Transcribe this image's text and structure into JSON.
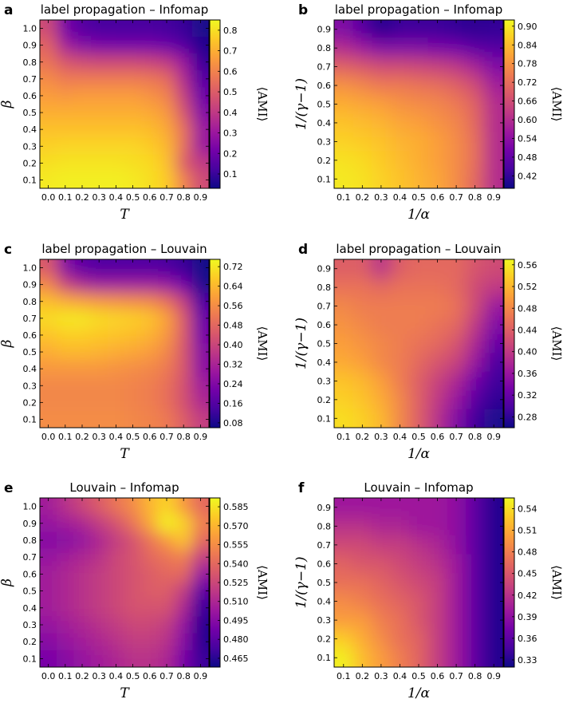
{
  "figure": {
    "colormap": [
      "#0d0887",
      "#46039f",
      "#7201a8",
      "#9c179e",
      "#bd3786",
      "#d8576b",
      "#ed7953",
      "#fb9f3a",
      "#fdca26",
      "#f0f921"
    ]
  },
  "chart_data": [
    {
      "type": "heatmap",
      "panel": "a",
      "title": "label propagation – Infomap",
      "xlabel": "T",
      "ylabel": "β",
      "colorbar_label": "⟨AMI⟩",
      "x": [
        0.0,
        0.1,
        0.2,
        0.3,
        0.4,
        0.5,
        0.6,
        0.7,
        0.8,
        0.9
      ],
      "y": [
        1.0,
        0.9,
        0.8,
        0.7,
        0.6,
        0.5,
        0.4,
        0.3,
        0.2,
        0.1
      ],
      "xticks": [
        "0.0",
        "0.1",
        "0.2",
        "0.3",
        "0.4",
        "0.5",
        "0.6",
        "0.7",
        "0.8",
        "0.9"
      ],
      "yticks": [
        "1.0",
        "0.9",
        "0.8",
        "0.7",
        "0.6",
        "0.5",
        "0.4",
        "0.3",
        "0.2",
        "0.1"
      ],
      "clim": [
        0.03,
        0.85
      ],
      "cbar_ticks": [
        "0.8",
        "0.7",
        "0.6",
        "0.5",
        "0.4",
        "0.3",
        "0.2",
        "0.1"
      ],
      "cbar_values": [
        0.8,
        0.7,
        0.6,
        0.5,
        0.4,
        0.3,
        0.2,
        0.1
      ],
      "values": [
        [
          0.45,
          0.22,
          0.15,
          0.13,
          0.13,
          0.13,
          0.13,
          0.12,
          0.1,
          0.05
        ],
        [
          0.52,
          0.32,
          0.25,
          0.23,
          0.22,
          0.22,
          0.22,
          0.2,
          0.15,
          0.06
        ],
        [
          0.56,
          0.48,
          0.45,
          0.44,
          0.44,
          0.44,
          0.43,
          0.4,
          0.3,
          0.1
        ],
        [
          0.62,
          0.58,
          0.58,
          0.58,
          0.58,
          0.58,
          0.57,
          0.54,
          0.36,
          0.15
        ],
        [
          0.66,
          0.65,
          0.66,
          0.66,
          0.66,
          0.66,
          0.64,
          0.6,
          0.42,
          0.2
        ],
        [
          0.7,
          0.7,
          0.7,
          0.7,
          0.7,
          0.7,
          0.69,
          0.65,
          0.48,
          0.25
        ],
        [
          0.74,
          0.74,
          0.74,
          0.74,
          0.74,
          0.74,
          0.73,
          0.69,
          0.55,
          0.3
        ],
        [
          0.77,
          0.78,
          0.78,
          0.78,
          0.78,
          0.78,
          0.76,
          0.72,
          0.55,
          0.3
        ],
        [
          0.8,
          0.81,
          0.81,
          0.81,
          0.81,
          0.8,
          0.79,
          0.74,
          0.5,
          0.4
        ],
        [
          0.82,
          0.83,
          0.83,
          0.83,
          0.83,
          0.82,
          0.8,
          0.76,
          0.6,
          0.45
        ]
      ]
    },
    {
      "type": "heatmap",
      "panel": "b",
      "title": "label propagation – Infomap",
      "xlabel": "1/α",
      "ylabel": "1/(γ−1)",
      "colorbar_label": "⟨AMI⟩",
      "x": [
        0.1,
        0.2,
        0.3,
        0.4,
        0.5,
        0.6,
        0.7,
        0.8,
        0.9
      ],
      "y": [
        0.9,
        0.8,
        0.7,
        0.6,
        0.5,
        0.4,
        0.3,
        0.2,
        0.1
      ],
      "xticks": [
        "0.1",
        "0.2",
        "0.3",
        "0.4",
        "0.5",
        "0.6",
        "0.7",
        "0.8",
        "0.9"
      ],
      "yticks": [
        "0.9",
        "0.8",
        "0.7",
        "0.6",
        "0.5",
        "0.4",
        "0.3",
        "0.2",
        "0.1"
      ],
      "clim": [
        0.38,
        0.92
      ],
      "cbar_ticks": [
        "0.90",
        "0.84",
        "0.78",
        "0.72",
        "0.66",
        "0.60",
        "0.54",
        "0.48",
        "0.42"
      ],
      "cbar_values": [
        0.9,
        0.84,
        0.78,
        0.72,
        0.66,
        0.6,
        0.54,
        0.48,
        0.42
      ],
      "values": [
        [
          0.52,
          0.46,
          0.4,
          0.43,
          0.43,
          0.43,
          0.42,
          0.41,
          0.42
        ],
        [
          0.6,
          0.56,
          0.52,
          0.52,
          0.52,
          0.51,
          0.5,
          0.47,
          0.46
        ],
        [
          0.7,
          0.68,
          0.66,
          0.66,
          0.65,
          0.64,
          0.62,
          0.58,
          0.52
        ],
        [
          0.78,
          0.76,
          0.74,
          0.74,
          0.73,
          0.72,
          0.7,
          0.66,
          0.57
        ],
        [
          0.82,
          0.81,
          0.8,
          0.78,
          0.77,
          0.76,
          0.74,
          0.7,
          0.6
        ],
        [
          0.85,
          0.84,
          0.83,
          0.81,
          0.8,
          0.78,
          0.76,
          0.71,
          0.6
        ],
        [
          0.87,
          0.86,
          0.85,
          0.83,
          0.82,
          0.8,
          0.77,
          0.72,
          0.6
        ],
        [
          0.89,
          0.88,
          0.86,
          0.84,
          0.82,
          0.8,
          0.77,
          0.72,
          0.6
        ],
        [
          0.9,
          0.89,
          0.87,
          0.85,
          0.83,
          0.81,
          0.77,
          0.71,
          0.6
        ]
      ]
    },
    {
      "type": "heatmap",
      "panel": "c",
      "title": "label propagation – Louvain",
      "xlabel": "T",
      "ylabel": "β",
      "colorbar_label": "⟨AMI⟩",
      "x": [
        0.0,
        0.1,
        0.2,
        0.3,
        0.4,
        0.5,
        0.6,
        0.7,
        0.8,
        0.9
      ],
      "y": [
        1.0,
        0.9,
        0.8,
        0.7,
        0.6,
        0.5,
        0.4,
        0.3,
        0.2,
        0.1
      ],
      "xticks": [
        "0.0",
        "0.1",
        "0.2",
        "0.3",
        "0.4",
        "0.5",
        "0.6",
        "0.7",
        "0.8",
        "0.9"
      ],
      "yticks": [
        "1.0",
        "0.9",
        "0.8",
        "0.7",
        "0.6",
        "0.5",
        "0.4",
        "0.3",
        "0.2",
        "0.1"
      ],
      "clim": [
        0.06,
        0.75
      ],
      "cbar_ticks": [
        "0.72",
        "0.64",
        "0.56",
        "0.48",
        "0.40",
        "0.32",
        "0.24",
        "0.16",
        "0.08"
      ],
      "cbar_values": [
        0.72,
        0.64,
        0.56,
        0.48,
        0.4,
        0.32,
        0.24,
        0.16,
        0.08
      ],
      "values": [
        [
          0.45,
          0.25,
          0.18,
          0.16,
          0.16,
          0.16,
          0.16,
          0.15,
          0.12,
          0.07
        ],
        [
          0.55,
          0.4,
          0.33,
          0.3,
          0.3,
          0.3,
          0.3,
          0.28,
          0.22,
          0.08
        ],
        [
          0.65,
          0.62,
          0.6,
          0.58,
          0.57,
          0.56,
          0.55,
          0.5,
          0.38,
          0.15
        ],
        [
          0.7,
          0.72,
          0.72,
          0.7,
          0.69,
          0.68,
          0.66,
          0.6,
          0.45,
          0.2
        ],
        [
          0.66,
          0.68,
          0.68,
          0.67,
          0.66,
          0.65,
          0.63,
          0.58,
          0.45,
          0.22
        ],
        [
          0.62,
          0.64,
          0.64,
          0.63,
          0.62,
          0.61,
          0.59,
          0.55,
          0.44,
          0.25
        ],
        [
          0.58,
          0.58,
          0.58,
          0.58,
          0.57,
          0.56,
          0.55,
          0.52,
          0.44,
          0.26
        ],
        [
          0.55,
          0.55,
          0.55,
          0.55,
          0.55,
          0.54,
          0.53,
          0.5,
          0.43,
          0.3
        ],
        [
          0.55,
          0.55,
          0.55,
          0.55,
          0.55,
          0.54,
          0.53,
          0.5,
          0.43,
          0.33
        ],
        [
          0.56,
          0.56,
          0.56,
          0.56,
          0.56,
          0.55,
          0.54,
          0.52,
          0.46,
          0.38
        ]
      ]
    },
    {
      "type": "heatmap",
      "panel": "d",
      "title": "label propagation – Louvain",
      "xlabel": "1/α",
      "ylabel": "1/(γ−1)",
      "colorbar_label": "⟨AMI⟩",
      "x": [
        0.1,
        0.2,
        0.3,
        0.4,
        0.5,
        0.6,
        0.7,
        0.8,
        0.9
      ],
      "y": [
        0.9,
        0.8,
        0.7,
        0.6,
        0.5,
        0.4,
        0.3,
        0.2,
        0.1
      ],
      "xticks": [
        "0.1",
        "0.2",
        "0.3",
        "0.4",
        "0.5",
        "0.6",
        "0.7",
        "0.8",
        "0.9"
      ],
      "yticks": [
        "0.9",
        "0.8",
        "0.7",
        "0.6",
        "0.5",
        "0.4",
        "0.3",
        "0.2",
        "0.1"
      ],
      "clim": [
        0.26,
        0.57
      ],
      "cbar_ticks": [
        "0.56",
        "0.52",
        "0.48",
        "0.44",
        "0.40",
        "0.36",
        "0.32",
        "0.28"
      ],
      "cbar_values": [
        0.56,
        0.52,
        0.48,
        0.44,
        0.4,
        0.36,
        0.32,
        0.28
      ],
      "values": [
        [
          0.44,
          0.44,
          0.39,
          0.44,
          0.45,
          0.45,
          0.45,
          0.43,
          0.42
        ],
        [
          0.46,
          0.46,
          0.45,
          0.46,
          0.46,
          0.46,
          0.45,
          0.42,
          0.4
        ],
        [
          0.48,
          0.47,
          0.47,
          0.47,
          0.47,
          0.47,
          0.46,
          0.42,
          0.36
        ],
        [
          0.49,
          0.48,
          0.47,
          0.47,
          0.47,
          0.46,
          0.45,
          0.4,
          0.34
        ],
        [
          0.5,
          0.49,
          0.48,
          0.47,
          0.46,
          0.45,
          0.43,
          0.38,
          0.32
        ],
        [
          0.51,
          0.5,
          0.48,
          0.47,
          0.45,
          0.43,
          0.41,
          0.36,
          0.3
        ],
        [
          0.53,
          0.52,
          0.5,
          0.47,
          0.44,
          0.41,
          0.38,
          0.33,
          0.29
        ],
        [
          0.54,
          0.53,
          0.51,
          0.48,
          0.44,
          0.4,
          0.36,
          0.31,
          0.28
        ],
        [
          0.55,
          0.54,
          0.52,
          0.48,
          0.44,
          0.39,
          0.34,
          0.29,
          0.27
        ]
      ]
    },
    {
      "type": "heatmap",
      "panel": "e",
      "title": "Louvain – Infomap",
      "xlabel": "T",
      "ylabel": "β",
      "colorbar_label": "⟨AMI⟩",
      "x": [
        0.0,
        0.1,
        0.2,
        0.3,
        0.4,
        0.5,
        0.6,
        0.7,
        0.8,
        0.9
      ],
      "y": [
        1.0,
        0.9,
        0.8,
        0.7,
        0.6,
        0.5,
        0.4,
        0.3,
        0.2,
        0.1
      ],
      "xticks": [
        "0.0",
        "0.1",
        "0.2",
        "0.3",
        "0.4",
        "0.5",
        "0.6",
        "0.7",
        "0.8",
        "0.9"
      ],
      "yticks": [
        "1.0",
        "0.9",
        "0.8",
        "0.7",
        "0.6",
        "0.5",
        "0.4",
        "0.3",
        "0.2",
        "0.1"
      ],
      "clim": [
        0.458,
        0.592
      ],
      "cbar_ticks": [
        "0.585",
        "0.570",
        "0.555",
        "0.540",
        "0.525",
        "0.510",
        "0.495",
        "0.480",
        "0.465"
      ],
      "cbar_values": [
        0.585,
        0.57,
        0.555,
        0.54,
        0.525,
        0.51,
        0.495,
        0.48,
        0.465
      ],
      "values": [
        [
          0.505,
          0.515,
          0.525,
          0.535,
          0.545,
          0.555,
          0.57,
          0.58,
          0.56,
          0.54
        ],
        [
          0.5,
          0.505,
          0.51,
          0.52,
          0.53,
          0.545,
          0.565,
          0.59,
          0.58,
          0.55
        ],
        [
          0.495,
          0.495,
          0.5,
          0.51,
          0.52,
          0.53,
          0.545,
          0.56,
          0.575,
          0.54
        ],
        [
          0.5,
          0.505,
          0.51,
          0.515,
          0.525,
          0.53,
          0.54,
          0.545,
          0.55,
          0.52
        ],
        [
          0.505,
          0.51,
          0.515,
          0.52,
          0.525,
          0.53,
          0.535,
          0.54,
          0.54,
          0.5
        ],
        [
          0.505,
          0.51,
          0.515,
          0.52,
          0.525,
          0.53,
          0.535,
          0.535,
          0.52,
          0.48
        ],
        [
          0.505,
          0.51,
          0.515,
          0.52,
          0.525,
          0.53,
          0.53,
          0.53,
          0.51,
          0.47
        ],
        [
          0.5,
          0.505,
          0.51,
          0.515,
          0.52,
          0.525,
          0.525,
          0.52,
          0.5,
          0.465
        ],
        [
          0.495,
          0.5,
          0.505,
          0.51,
          0.515,
          0.52,
          0.52,
          0.515,
          0.495,
          0.465
        ],
        [
          0.49,
          0.495,
          0.5,
          0.505,
          0.51,
          0.515,
          0.515,
          0.51,
          0.49,
          0.47
        ]
      ]
    },
    {
      "type": "heatmap",
      "panel": "f",
      "title": "Louvain – Infomap",
      "xlabel": "1/α",
      "ylabel": "1/(γ−1)",
      "colorbar_label": "⟨AMI⟩",
      "x": [
        0.1,
        0.2,
        0.3,
        0.4,
        0.5,
        0.6,
        0.7,
        0.8,
        0.9
      ],
      "y": [
        0.9,
        0.8,
        0.7,
        0.6,
        0.5,
        0.4,
        0.3,
        0.2,
        0.1
      ],
      "xticks": [
        "0.1",
        "0.2",
        "0.3",
        "0.4",
        "0.5",
        "0.6",
        "0.7",
        "0.8",
        "0.9"
      ],
      "yticks": [
        "0.9",
        "0.8",
        "0.7",
        "0.6",
        "0.5",
        "0.4",
        "0.3",
        "0.2",
        "0.1"
      ],
      "clim": [
        0.32,
        0.555
      ],
      "cbar_ticks": [
        "0.54",
        "0.51",
        "0.48",
        "0.45",
        "0.42",
        "0.39",
        "0.36",
        "0.33"
      ],
      "cbar_values": [
        0.54,
        0.51,
        0.48,
        0.45,
        0.42,
        0.39,
        0.36,
        0.33
      ],
      "values": [
        [
          0.4,
          0.4,
          0.4,
          0.4,
          0.4,
          0.4,
          0.39,
          0.36,
          0.33
        ],
        [
          0.42,
          0.42,
          0.41,
          0.41,
          0.4,
          0.4,
          0.39,
          0.36,
          0.33
        ],
        [
          0.44,
          0.44,
          0.43,
          0.43,
          0.42,
          0.41,
          0.39,
          0.36,
          0.33
        ],
        [
          0.46,
          0.45,
          0.45,
          0.44,
          0.43,
          0.42,
          0.4,
          0.36,
          0.33
        ],
        [
          0.47,
          0.47,
          0.46,
          0.45,
          0.44,
          0.43,
          0.4,
          0.36,
          0.33
        ],
        [
          0.49,
          0.48,
          0.47,
          0.46,
          0.45,
          0.43,
          0.4,
          0.36,
          0.33
        ],
        [
          0.5,
          0.5,
          0.48,
          0.47,
          0.45,
          0.43,
          0.4,
          0.36,
          0.33
        ],
        [
          0.53,
          0.51,
          0.49,
          0.47,
          0.46,
          0.43,
          0.4,
          0.36,
          0.33
        ],
        [
          0.55,
          0.52,
          0.5,
          0.48,
          0.46,
          0.43,
          0.4,
          0.36,
          0.33
        ]
      ]
    }
  ]
}
